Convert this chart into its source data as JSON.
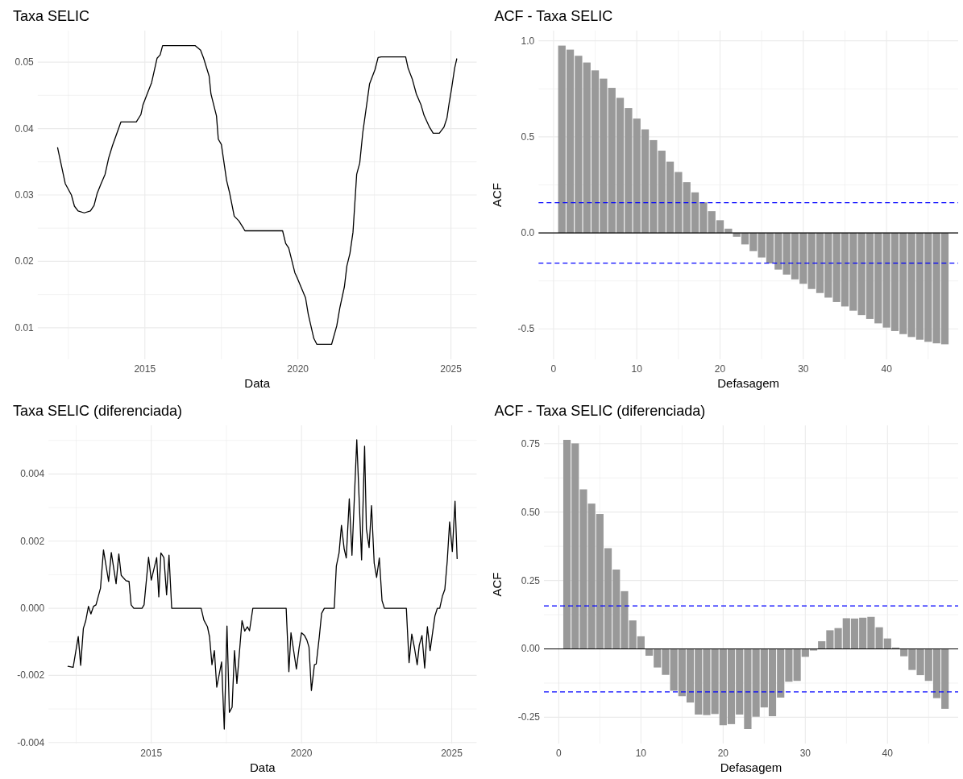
{
  "chart_data": [
    {
      "type": "line",
      "title": "Taxa SELIC",
      "xlabel": "Data",
      "color": "#000000",
      "grid": true,
      "x": [
        2012.15,
        2012.4,
        2012.6,
        2012.7,
        2012.82,
        2013.02,
        2013.22,
        2013.34,
        2013.44,
        2013.57,
        2013.7,
        2013.82,
        2013.94,
        2014.22,
        2014.72,
        2014.87,
        2014.94,
        2015.1,
        2015.22,
        2015.4,
        2015.5,
        2015.58,
        2016.64,
        2016.82,
        2016.92,
        2017.1,
        2017.16,
        2017.34,
        2017.4,
        2017.5,
        2017.67,
        2017.77,
        2017.92,
        2018.07,
        2018.22,
        2018.27,
        2019.5,
        2019.6,
        2019.7,
        2019.9,
        2019.97,
        2020.25,
        2020.34,
        2020.52,
        2020.62,
        2021.1,
        2021.27,
        2021.37,
        2021.52,
        2021.6,
        2021.7,
        2021.8,
        2021.92,
        2022.02,
        2022.12,
        2022.34,
        2022.52,
        2022.62,
        2022.72,
        2023.52,
        2023.6,
        2023.74,
        2023.87,
        2024.02,
        2024.12,
        2024.3,
        2024.42,
        2024.62,
        2024.77,
        2024.87,
        2024.94,
        2025.02,
        2025.12,
        2025.19
      ],
      "values": [
        0.0371,
        0.0317,
        0.03,
        0.0283,
        0.0276,
        0.0273,
        0.0276,
        0.0284,
        0.0302,
        0.0317,
        0.0331,
        0.0356,
        0.0374,
        0.041,
        0.041,
        0.0421,
        0.0436,
        0.0455,
        0.0469,
        0.0506,
        0.0511,
        0.0525,
        0.0525,
        0.0518,
        0.0506,
        0.0479,
        0.0452,
        0.0419,
        0.0384,
        0.0376,
        0.0322,
        0.0303,
        0.0268,
        0.0261,
        0.025,
        0.0246,
        0.0246,
        0.0227,
        0.022,
        0.0183,
        0.0176,
        0.0145,
        0.012,
        0.0084,
        0.0075,
        0.0075,
        0.0103,
        0.013,
        0.0162,
        0.0193,
        0.0212,
        0.0244,
        0.0331,
        0.0348,
        0.0394,
        0.0467,
        0.0489,
        0.0507,
        0.0508,
        0.0508,
        0.0491,
        0.0474,
        0.0452,
        0.0436,
        0.042,
        0.0402,
        0.0393,
        0.0393,
        0.0402,
        0.0416,
        0.0438,
        0.046,
        0.0491,
        0.0505
      ],
      "xlim": [
        2011.5,
        2025.84
      ],
      "xticks": [
        {
          "value": 2012.5,
          "label": null
        },
        2015,
        {
          "value": 2017.5,
          "label": null
        },
        2020,
        {
          "value": 2022.5,
          "label": null
        },
        2025
      ],
      "ylim": [
        0.00525,
        0.05475
      ],
      "yticks": [
        0.01,
        {
          "value": 0.015,
          "label": null
        },
        0.02,
        {
          "value": 0.025,
          "label": null
        },
        0.03,
        {
          "value": 0.035,
          "label": null
        },
        0.04,
        {
          "value": 0.045,
          "label": null
        },
        0.05
      ]
    },
    {
      "type": "bar",
      "title": "ACF - Taxa SELIC",
      "xlabel": "Defasagem",
      "ylabel": "ACF",
      "color": "#999999",
      "grid": true,
      "x": [
        1,
        2,
        3,
        4,
        5,
        6,
        7,
        8,
        9,
        10,
        11,
        12,
        13,
        14,
        15,
        16,
        17,
        18,
        19,
        20,
        21,
        22,
        23,
        24,
        25,
        26,
        27,
        28,
        29,
        30,
        31,
        32,
        33,
        34,
        35,
        36,
        37,
        38,
        39,
        40,
        41,
        42,
        43,
        44,
        45,
        46,
        47
      ],
      "values": [
        0.975,
        0.954,
        0.922,
        0.887,
        0.846,
        0.803,
        0.755,
        0.703,
        0.65,
        0.595,
        0.539,
        0.483,
        0.428,
        0.371,
        0.317,
        0.264,
        0.211,
        0.159,
        0.113,
        0.066,
        0.022,
        -0.02,
        -0.06,
        -0.095,
        -0.128,
        -0.159,
        -0.191,
        -0.217,
        -0.242,
        -0.265,
        -0.292,
        -0.313,
        -0.337,
        -0.36,
        -0.383,
        -0.405,
        -0.428,
        -0.448,
        -0.471,
        -0.493,
        -0.511,
        -0.527,
        -0.542,
        -0.556,
        -0.567,
        -0.575,
        -0.58
      ],
      "xlim": [
        -1.8,
        48.6
      ],
      "xticks": [
        0,
        {
          "value": 5,
          "label": null
        },
        10,
        {
          "value": 15,
          "label": null
        },
        20,
        {
          "value": 25,
          "label": null
        },
        30,
        {
          "value": 35,
          "label": null
        },
        40,
        {
          "value": 45,
          "label": null
        }
      ],
      "ylim": [
        -0.658,
        1.053
      ],
      "yticks": [
        {
          "value": -0.5,
          "label": "-0.5"
        },
        {
          "value": -0.25,
          "label": null
        },
        {
          "value": 0,
          "label": "0.0"
        },
        {
          "value": 0.25,
          "label": null
        },
        {
          "value": 0.5,
          "label": "0.5"
        },
        {
          "value": 0.75,
          "label": null
        },
        {
          "value": 1,
          "label": "1.0"
        }
      ],
      "ref_lines": [
        {
          "axis": "y",
          "value": 0.157,
          "color": "#0000ff",
          "line_style": "dashed"
        },
        {
          "axis": "y",
          "value": -0.157,
          "color": "#0000ff",
          "line_style": "dashed"
        },
        {
          "axis": "y",
          "value": 0,
          "color": "#000000",
          "line_style": "solid"
        }
      ]
    },
    {
      "type": "line",
      "title": "Taxa SELIC (diferenciada)",
      "xlabel": "Data",
      "color": "#000000",
      "grid": true,
      "x": [
        2012.23,
        2012.4,
        2012.57,
        2012.65,
        2012.74,
        2012.82,
        2012.91,
        2012.99,
        2013.08,
        2013.16,
        2013.31,
        2013.41,
        2013.58,
        2013.67,
        2013.83,
        2013.92,
        2014.0,
        2014.16,
        2014.26,
        2014.33,
        2014.42,
        2014.69,
        2014.76,
        2014.91,
        2015.0,
        2015.18,
        2015.25,
        2015.32,
        2015.42,
        2015.51,
        2015.59,
        2015.68,
        2016.66,
        2016.75,
        2016.87,
        2016.94,
        2017.02,
        2017.1,
        2017.18,
        2017.34,
        2017.43,
        2017.52,
        2017.6,
        2017.69,
        2017.77,
        2017.85,
        2018.02,
        2018.11,
        2018.2,
        2018.27,
        2018.38,
        2019.49,
        2019.58,
        2019.65,
        2019.83,
        2019.92,
        2020.0,
        2020.1,
        2020.18,
        2020.25,
        2020.33,
        2020.43,
        2020.49,
        2020.59,
        2020.67,
        2020.76,
        2021.09,
        2021.16,
        2021.25,
        2021.33,
        2021.42,
        2021.49,
        2021.59,
        2021.68,
        2021.84,
        2022.0,
        2022.1,
        2022.16,
        2022.25,
        2022.33,
        2022.42,
        2022.5,
        2022.59,
        2022.68,
        2022.76,
        2023.49,
        2023.58,
        2023.67,
        2023.76,
        2023.85,
        2023.92,
        2024.01,
        2024.1,
        2024.19,
        2024.28,
        2024.44,
        2024.52,
        2024.6,
        2024.69,
        2024.77,
        2024.85,
        2024.93,
        2025.02,
        2025.11,
        2025.18
      ],
      "values": [
        -0.00173,
        -0.00176,
        -0.00084,
        -0.0017,
        -0.0006,
        -0.00037,
        6e-05,
        -0.00017,
        6e-05,
        0.0001,
        0.0006,
        0.00174,
        0.0008,
        0.00166,
        0.00073,
        0.00162,
        0.00098,
        0.00082,
        0.0008,
        0.0001,
        0,
        0,
        0.0001,
        0.00152,
        0.00084,
        0.00151,
        0.00034,
        0.00165,
        0.00151,
        0.0004,
        0.00158,
        0,
        0,
        -0.00035,
        -0.00055,
        -0.00085,
        -0.00168,
        -0.00126,
        -0.00235,
        -0.0016,
        -0.0036,
        -0.00053,
        -0.0031,
        -0.00295,
        -0.00126,
        -0.00224,
        -0.00037,
        -0.00068,
        -0.00055,
        -0.00067,
        0,
        0,
        -0.00189,
        -0.00073,
        -0.00181,
        -0.00118,
        -0.00073,
        -0.00081,
        -0.00095,
        -0.00116,
        -0.00245,
        -0.00168,
        -0.00166,
        -0.00087,
        -0.00015,
        0,
        0,
        0.00126,
        0.00165,
        0.00247,
        0.00177,
        0.0015,
        0.00326,
        0.00158,
        0.00502,
        0.00144,
        0.00483,
        0.00237,
        0.00181,
        0.00306,
        0.00134,
        0.00092,
        0.0015,
        0.00023,
        0,
        0,
        -0.00162,
        -0.00077,
        -0.00118,
        -0.00168,
        -0.0011,
        -0.00081,
        -0.00178,
        -0.00055,
        -0.00126,
        -0.00023,
        0,
        0,
        0.00036,
        0.00056,
        0.0014,
        0.00257,
        0.00169,
        0.00319,
        0.00148
      ],
      "xlim": [
        2011.58,
        2025.83
      ],
      "xticks": [
        {
          "value": 2012.5,
          "label": null
        },
        2015,
        {
          "value": 2017.5,
          "label": null
        },
        2020,
        {
          "value": 2022.5,
          "label": null
        },
        2025
      ],
      "ylim": [
        -0.00403,
        0.00545
      ],
      "yticks": [
        {
          "value": -0.004,
          "label": "-0.004"
        },
        {
          "value": -0.003,
          "label": null
        },
        {
          "value": -0.002,
          "label": "-0.002"
        },
        {
          "value": -0.001,
          "label": null
        },
        {
          "value": 0,
          "label": "0.000"
        },
        {
          "value": 0.001,
          "label": null
        },
        {
          "value": 0.002,
          "label": "0.002"
        },
        {
          "value": 0.003,
          "label": null
        },
        {
          "value": 0.004,
          "label": "0.004"
        },
        {
          "value": 0.005,
          "label": null
        }
      ]
    },
    {
      "type": "bar",
      "title": "ACF - Taxa SELIC (diferenciada)",
      "xlabel": "Defasagem",
      "ylabel": "ACF",
      "color": "#999999",
      "grid": true,
      "x": [
        1,
        2,
        3,
        4,
        5,
        6,
        7,
        8,
        9,
        10,
        11,
        12,
        13,
        14,
        15,
        16,
        17,
        18,
        19,
        20,
        21,
        22,
        23,
        24,
        25,
        26,
        27,
        28,
        29,
        30,
        31,
        32,
        33,
        34,
        35,
        36,
        37,
        38,
        39,
        40,
        41,
        42,
        43,
        44,
        45,
        46,
        47
      ],
      "values": [
        0.764,
        0.751,
        0.583,
        0.531,
        0.493,
        0.368,
        0.29,
        0.211,
        0.104,
        0.046,
        -0.025,
        -0.068,
        -0.095,
        -0.153,
        -0.173,
        -0.196,
        -0.24,
        -0.242,
        -0.238,
        -0.279,
        -0.275,
        -0.24,
        -0.293,
        -0.248,
        -0.214,
        -0.246,
        -0.178,
        -0.12,
        -0.117,
        -0.029,
        -0.006,
        0.028,
        0.068,
        0.076,
        0.112,
        0.111,
        0.114,
        0.117,
        0.079,
        0.038,
        0.005,
        -0.027,
        -0.077,
        -0.096,
        -0.117,
        -0.18,
        -0.219
      ],
      "xlim": [
        -1.8,
        48.6
      ],
      "xticks": [
        0,
        {
          "value": 5,
          "label": null
        },
        10,
        {
          "value": 15,
          "label": null
        },
        20,
        {
          "value": 25,
          "label": null
        },
        30,
        {
          "value": 35,
          "label": null
        },
        40,
        {
          "value": 45,
          "label": null
        }
      ],
      "ylim": [
        -0.346,
        0.817
      ],
      "yticks": [
        {
          "value": -0.25,
          "label": "-0.25"
        },
        {
          "value": -0.125,
          "label": null
        },
        {
          "value": 0,
          "label": "0.00"
        },
        {
          "value": 0.125,
          "label": null
        },
        {
          "value": 0.25,
          "label": "0.25"
        },
        {
          "value": 0.375,
          "label": null
        },
        {
          "value": 0.5,
          "label": "0.50"
        },
        {
          "value": 0.625,
          "label": null
        },
        {
          "value": 0.75,
          "label": "0.75"
        }
      ],
      "ref_lines": [
        {
          "axis": "y",
          "value": 0.157,
          "color": "#0000ff",
          "line_style": "dashed"
        },
        {
          "axis": "y",
          "value": -0.157,
          "color": "#0000ff",
          "line_style": "dashed"
        },
        {
          "axis": "y",
          "value": 0,
          "color": "#000000",
          "line_style": "solid"
        }
      ]
    }
  ]
}
